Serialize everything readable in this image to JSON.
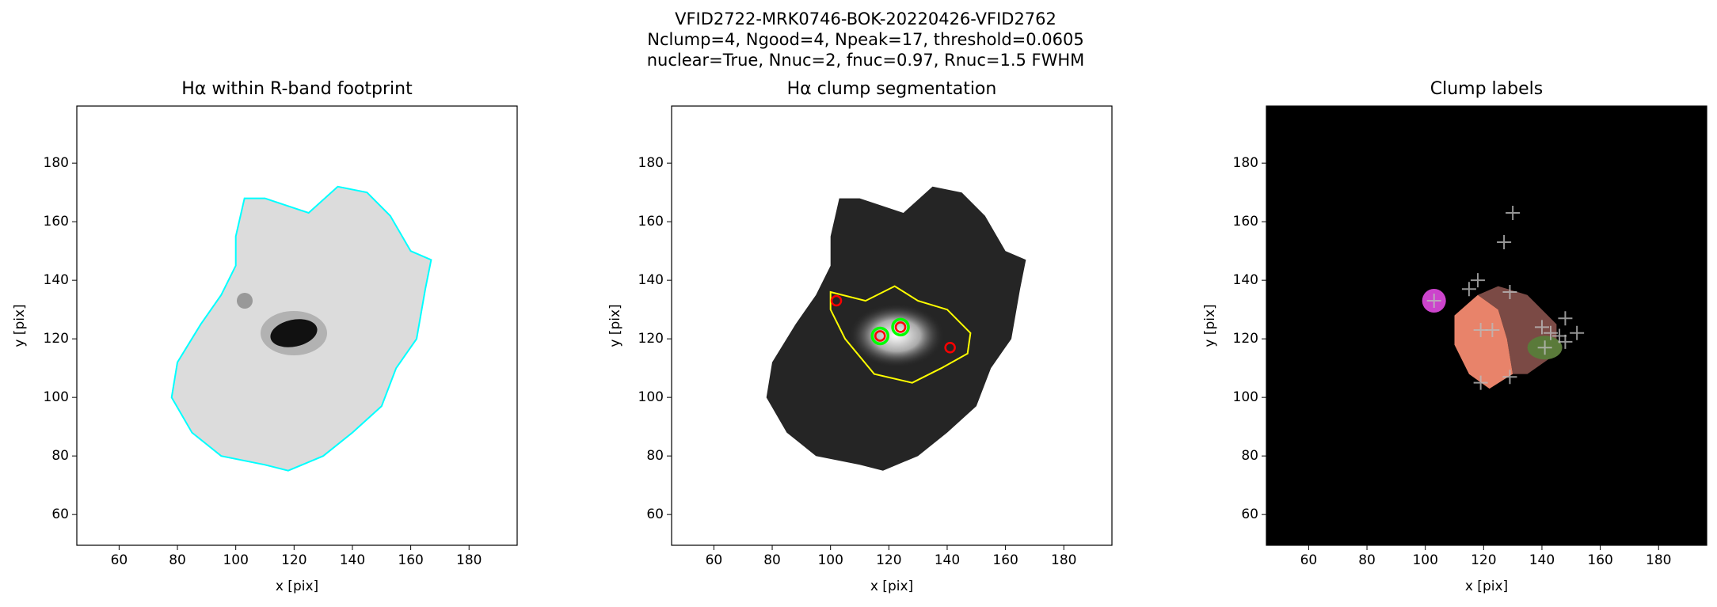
{
  "figure": {
    "title": [
      "VFID2722-MRK0746-BOK-20220426-VFID2762",
      "Nclump=4, Ngood=4, Npeak=17, threshold=0.0605",
      "nuclear=True, Nnuc=2, fnuc=0.97, Rnuc=1.5 FWHM"
    ]
  },
  "chart_data": [
    {
      "type": "image",
      "title": "Hα within R-band footprint",
      "xlabel": "x [pix]",
      "ylabel": "y [pix]",
      "xlim": [
        45.5,
        196.5
      ],
      "ylim": [
        49.5,
        199.5
      ],
      "xticks": [
        60,
        80,
        100,
        120,
        140,
        160,
        180
      ],
      "yticks": [
        60,
        80,
        100,
        120,
        140,
        160,
        180
      ]
    },
    {
      "type": "scatter",
      "title": "Hα clump segmentation",
      "xlabel": "x [pix]",
      "ylabel": "y [pix]",
      "xlim": [
        45.5,
        196.5
      ],
      "ylim": [
        49.5,
        199.5
      ],
      "xticks": [
        60,
        80,
        100,
        120,
        140,
        160,
        180
      ],
      "yticks": [
        60,
        80,
        100,
        120,
        140,
        160,
        180
      ],
      "series": [
        {
          "color": "#ff0000",
          "marker": "o",
          "x": [
            102,
            117,
            124,
            141
          ],
          "y": [
            133,
            121,
            124,
            117
          ]
        },
        {
          "color": "#00ff00",
          "marker": "o",
          "x": [
            117,
            124
          ],
          "y": [
            121,
            124
          ]
        }
      ]
    },
    {
      "type": "scatter",
      "title": "Clump labels",
      "xlabel": "x [pix]",
      "ylabel": "y [pix]",
      "xlim": [
        45.5,
        196.5
      ],
      "ylim": [
        49.5,
        199.5
      ],
      "xticks": [
        60,
        80,
        100,
        120,
        140,
        160,
        180
      ],
      "yticks": [
        60,
        80,
        100,
        120,
        140,
        160,
        180
      ],
      "series": [
        {
          "color": "#bbbbbb",
          "marker": "+",
          "x": [
            103,
            115,
            118,
            130,
            127,
            129,
            119,
            123,
            140,
            143,
            148,
            148,
            152,
            141,
            119,
            129,
            146
          ],
          "y": [
            133,
            137,
            140,
            163,
            153,
            136,
            123,
            123,
            124,
            122,
            127,
            119,
            122,
            117,
            105,
            107,
            121
          ]
        }
      ]
    }
  ]
}
